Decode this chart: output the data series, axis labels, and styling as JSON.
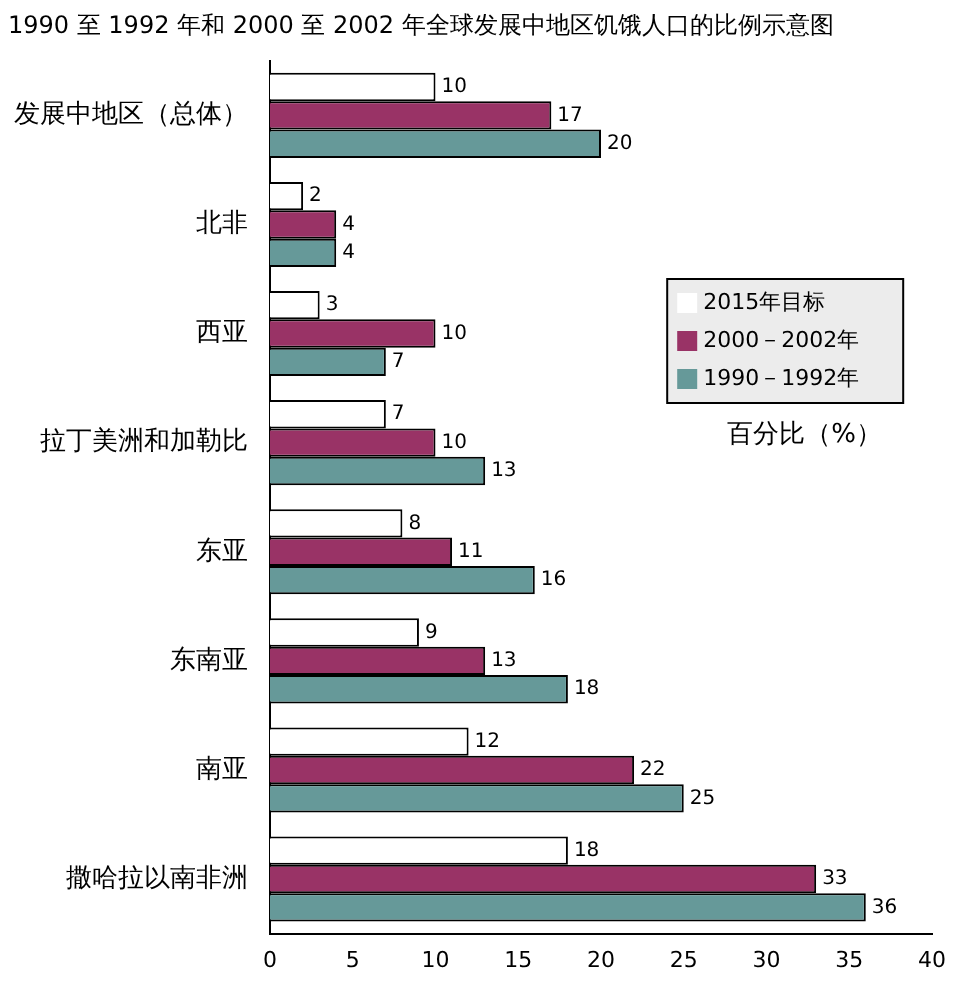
{
  "chart_data": {
    "type": "bar",
    "orientation": "horizontal",
    "title": "1990 至 1992 年和 2000 至 2002 年全球发展中地区饥饿人口的比例示意图",
    "xlabel": "百分比（%）",
    "categories": [
      "发展中地区（总体）",
      "北非",
      "西亚",
      "拉丁美洲和加勒比",
      "东亚",
      "东南亚",
      "南亚",
      "撒哈拉以南非洲"
    ],
    "series": [
      {
        "name": "2015年目标",
        "color": "#ffffff",
        "values": [
          10,
          2,
          3,
          7,
          8,
          9,
          12,
          18
        ]
      },
      {
        "name": "2000－2002年",
        "color": "#993366",
        "values": [
          17,
          4,
          10,
          10,
          11,
          13,
          22,
          33
        ]
      },
      {
        "name": "1990－1992年",
        "color": "#669999",
        "values": [
          20,
          4,
          7,
          13,
          16,
          18,
          25,
          36
        ]
      }
    ],
    "xlim": [
      0,
      40
    ],
    "xticks": [
      0,
      5,
      10,
      15,
      20,
      25,
      30,
      35,
      40
    ],
    "grid": false,
    "legend": "right",
    "data_labels": true
  }
}
